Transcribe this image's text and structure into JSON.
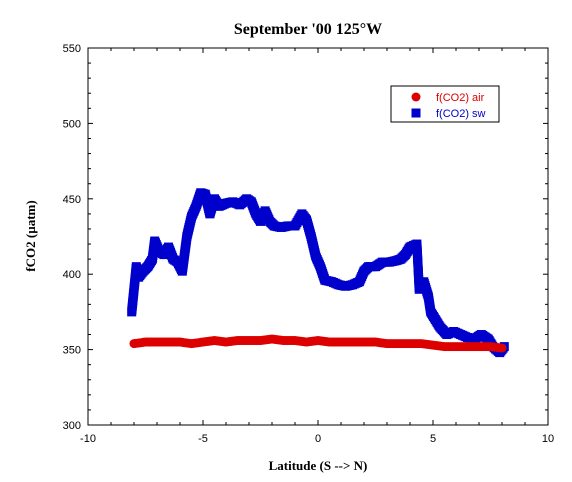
{
  "chart_data": {
    "type": "scatter",
    "title": "September '00 125°W",
    "xlabel": "Latitude (S --> N)",
    "ylabel": "fCO2 (µatm)",
    "xlim": [
      -10,
      10
    ],
    "ylim": [
      300,
      550
    ],
    "xticks": [
      "-10",
      "-5",
      "0",
      "5",
      "10"
    ],
    "yticks": [
      "300",
      "350",
      "400",
      "450",
      "500",
      "550"
    ],
    "grid": false,
    "legend_position": "top-right",
    "series": [
      {
        "name": "f(CO2) air",
        "color": "#dd0000",
        "marker": "circle",
        "points": [
          [
            -8.0,
            354
          ],
          [
            -7.5,
            355
          ],
          [
            -7.0,
            355
          ],
          [
            -6.5,
            355
          ],
          [
            -6.0,
            355
          ],
          [
            -5.5,
            354
          ],
          [
            -5.0,
            355
          ],
          [
            -4.5,
            356
          ],
          [
            -4.0,
            355
          ],
          [
            -3.5,
            356
          ],
          [
            -3.0,
            356
          ],
          [
            -2.5,
            356
          ],
          [
            -2.0,
            357
          ],
          [
            -1.5,
            356
          ],
          [
            -1.0,
            356
          ],
          [
            -0.5,
            355
          ],
          [
            0.0,
            356
          ],
          [
            0.5,
            355
          ],
          [
            1.0,
            355
          ],
          [
            1.5,
            355
          ],
          [
            2.0,
            355
          ],
          [
            2.5,
            355
          ],
          [
            3.0,
            354
          ],
          [
            3.5,
            354
          ],
          [
            4.0,
            354
          ],
          [
            4.5,
            354
          ],
          [
            5.0,
            353
          ],
          [
            5.5,
            352
          ],
          [
            6.0,
            352
          ],
          [
            6.5,
            352
          ],
          [
            7.0,
            352
          ],
          [
            7.5,
            352
          ],
          [
            8.0,
            351
          ]
        ]
      },
      {
        "name": "f(CO2) sw",
        "color": "#0000cc",
        "marker": "square",
        "points": [
          [
            -8.1,
            375
          ],
          [
            -8.0,
            390
          ],
          [
            -7.9,
            405
          ],
          [
            -7.8,
            398
          ],
          [
            -7.6,
            402
          ],
          [
            -7.4,
            405
          ],
          [
            -7.2,
            410
          ],
          [
            -7.1,
            422
          ],
          [
            -6.9,
            415
          ],
          [
            -6.7,
            413
          ],
          [
            -6.5,
            418
          ],
          [
            -6.3,
            410
          ],
          [
            -6.1,
            408
          ],
          [
            -5.9,
            402
          ],
          [
            -5.7,
            425
          ],
          [
            -5.5,
            438
          ],
          [
            -5.3,
            445
          ],
          [
            -5.1,
            454
          ],
          [
            -4.9,
            453
          ],
          [
            -4.7,
            440
          ],
          [
            -4.5,
            450
          ],
          [
            -4.3,
            445
          ],
          [
            -4.0,
            447
          ],
          [
            -3.7,
            448
          ],
          [
            -3.4,
            446
          ],
          [
            -3.1,
            450
          ],
          [
            -2.9,
            448
          ],
          [
            -2.7,
            440
          ],
          [
            -2.5,
            435
          ],
          [
            -2.3,
            442
          ],
          [
            -2.1,
            435
          ],
          [
            -1.9,
            432
          ],
          [
            -1.6,
            431
          ],
          [
            -1.3,
            432
          ],
          [
            -1.0,
            432
          ],
          [
            -0.7,
            440
          ],
          [
            -0.5,
            436
          ],
          [
            -0.3,
            425
          ],
          [
            -0.1,
            412
          ],
          [
            0.1,
            405
          ],
          [
            0.3,
            396
          ],
          [
            0.6,
            395
          ],
          [
            0.9,
            393
          ],
          [
            1.2,
            392
          ],
          [
            1.5,
            393
          ],
          [
            1.8,
            395
          ],
          [
            2.0,
            402
          ],
          [
            2.2,
            405
          ],
          [
            2.5,
            405
          ],
          [
            2.8,
            408
          ],
          [
            3.1,
            408
          ],
          [
            3.4,
            409
          ],
          [
            3.6,
            410
          ],
          [
            3.8,
            413
          ],
          [
            4.0,
            418
          ],
          [
            4.3,
            420
          ],
          [
            4.4,
            390
          ],
          [
            4.6,
            395
          ],
          [
            4.8,
            385
          ],
          [
            4.9,
            375
          ],
          [
            5.1,
            370
          ],
          [
            5.3,
            365
          ],
          [
            5.6,
            360
          ],
          [
            5.9,
            362
          ],
          [
            6.2,
            360
          ],
          [
            6.5,
            358
          ],
          [
            6.8,
            357
          ],
          [
            7.1,
            360
          ],
          [
            7.4,
            357
          ],
          [
            7.6,
            352
          ],
          [
            7.9,
            348
          ],
          [
            8.1,
            352
          ]
        ]
      }
    ]
  }
}
